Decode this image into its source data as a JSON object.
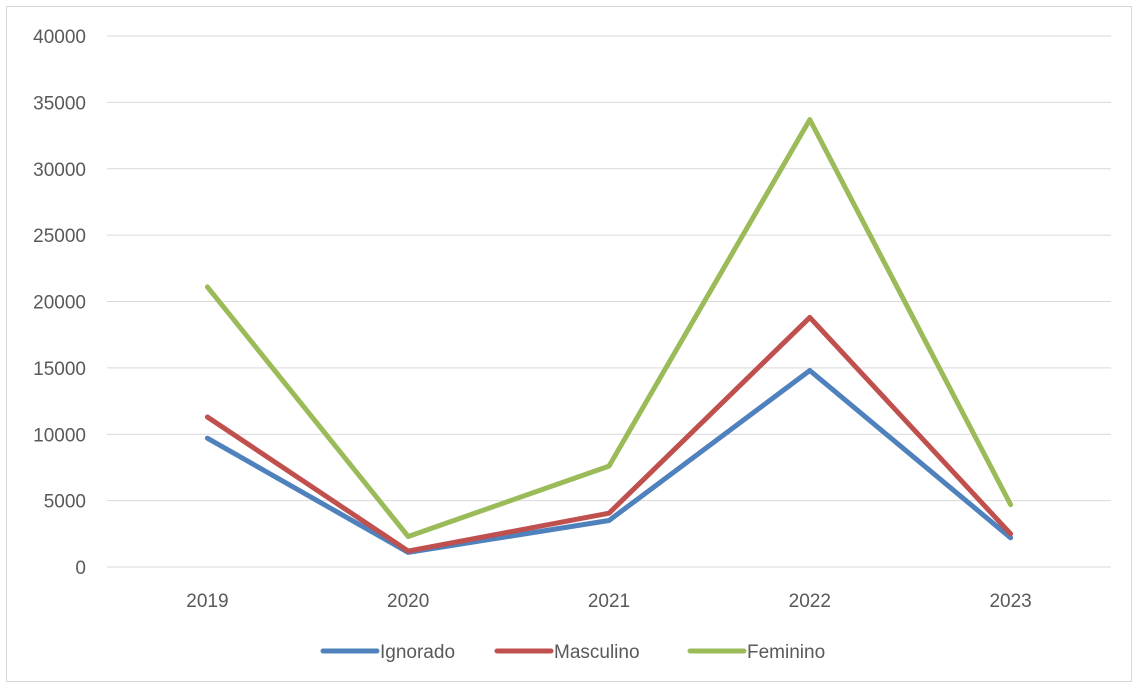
{
  "chart_data": {
    "type": "line",
    "title": "",
    "xlabel": "",
    "ylabel": "",
    "categories": [
      "2019",
      "2020",
      "2021",
      "2022",
      "2023"
    ],
    "ylim": [
      0,
      40000
    ],
    "yticks": [
      0,
      5000,
      10000,
      15000,
      20000,
      25000,
      30000,
      35000,
      40000
    ],
    "ytick_labels": [
      "0",
      "5000",
      "10000",
      "15000",
      "20000",
      "25000",
      "30000",
      "35000",
      "40000"
    ],
    "grid": "horizontal",
    "legend_position": "bottom",
    "series": [
      {
        "name": "Ignorado",
        "color": "#4f81bd",
        "values": [
          9700,
          1100,
          3500,
          14800,
          2200
        ]
      },
      {
        "name": "Masculino",
        "color": "#c0504d",
        "values": [
          11300,
          1200,
          4050,
          18800,
          2500
        ]
      },
      {
        "name": "Feminino",
        "color": "#9bbb59",
        "values": [
          21100,
          2300,
          7600,
          33700,
          4700
        ]
      }
    ]
  }
}
